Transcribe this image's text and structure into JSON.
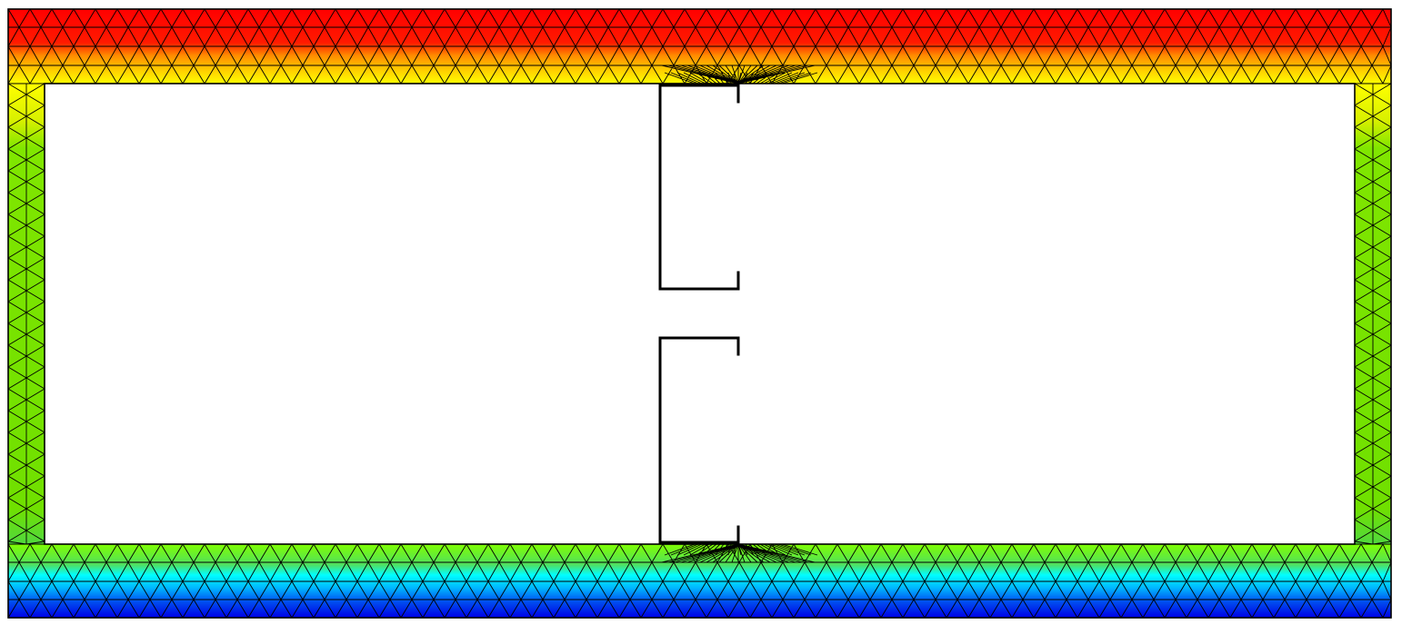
{
  "figure": {
    "kind": "finite-element-mesh-contour",
    "title": "",
    "colormap": {
      "name": "jet",
      "stops": [
        "#0000e6",
        "#0064ff",
        "#00e6ff",
        "#66e600",
        "#b4f000",
        "#ffff00",
        "#ffa500",
        "#ff0000"
      ]
    },
    "mesh_line_color": "#000000",
    "background_color": "#ffffff",
    "c_sections": [
      {
        "name": "upper-c-section",
        "orientation": "opens-right"
      },
      {
        "name": "lower-c-section",
        "orientation": "opens-right"
      }
    ]
  }
}
